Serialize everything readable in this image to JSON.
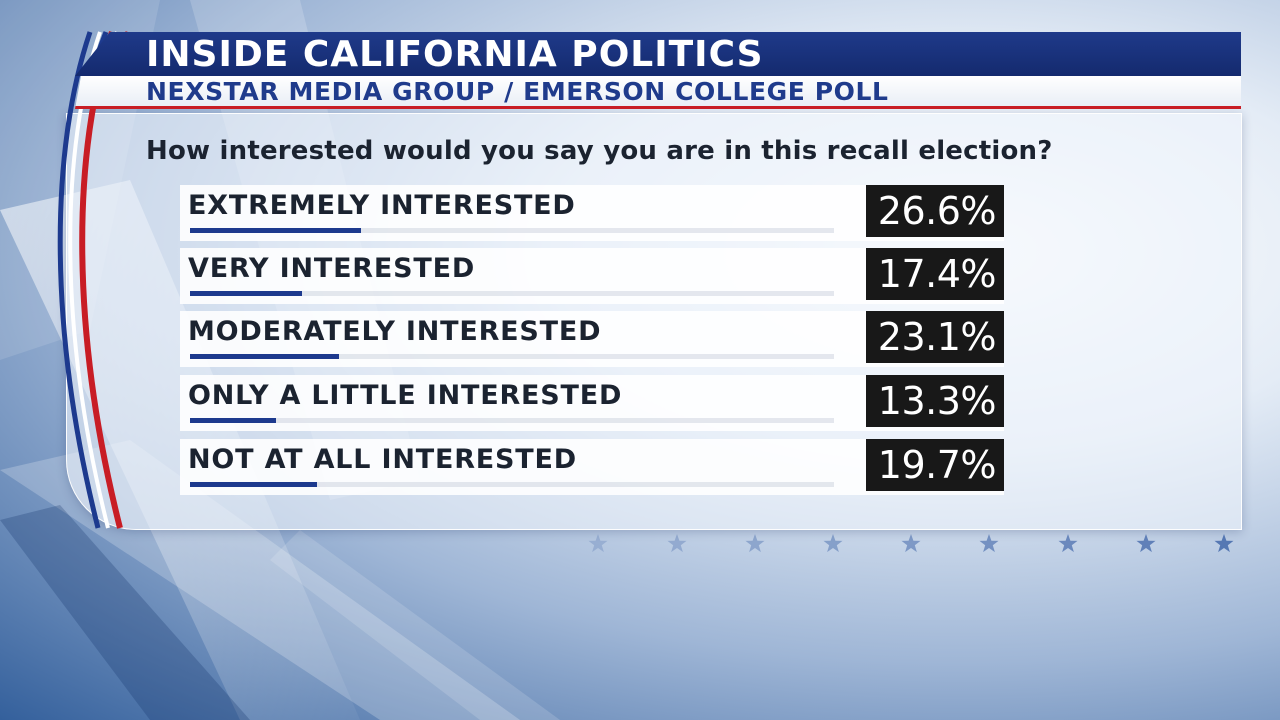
{
  "header": {
    "title": "INSIDE CALIFORNIA POLITICS",
    "subtitle": "NEXSTAR MEDIA GROUP / EMERSON COLLEGE POLL"
  },
  "colors": {
    "navy": "#1d3a8e",
    "red": "#c81d25",
    "value_box": "#181818"
  },
  "chart_data": {
    "type": "bar",
    "title": "How interested would you say you are in this recall election?",
    "categories": [
      "EXTREMELY INTERESTED",
      "VERY INTERESTED",
      "MODERATELY INTERESTED",
      "ONLY A LITTLE INTERESTED",
      "NOT AT ALL INTERESTED"
    ],
    "values": [
      26.6,
      17.4,
      23.1,
      13.3,
      19.7
    ],
    "value_labels": [
      "26.6%",
      "17.4%",
      "23.1%",
      "13.3%",
      "19.7%"
    ],
    "xlabel": "",
    "ylabel": "",
    "xlim": [
      0,
      100
    ]
  }
}
